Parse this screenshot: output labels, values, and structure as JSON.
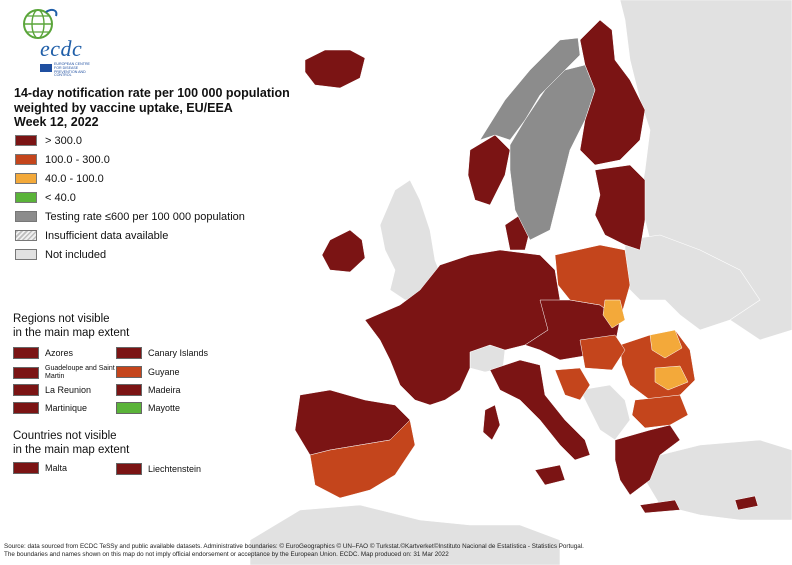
{
  "logo": {
    "text": "ecdc",
    "subtitle": "EUROPEAN CENTRE FOR DISEASE PREVENTION AND CONTROL"
  },
  "title": {
    "line1": "14-day notification rate per 100 000 population",
    "line2": "weighted by vaccine uptake, EU/EEA",
    "line3": "Week 12, 2022"
  },
  "legend": [
    {
      "label": "> 300.0",
      "color": "#7b1414"
    },
    {
      "label": "100.0 - 300.0",
      "color": "#c4451c"
    },
    {
      "label": "40.0 - 100.0",
      "color": "#f3a93a"
    },
    {
      "label": "< 40.0",
      "color": "#5ab339"
    },
    {
      "label": "Testing rate ≤600 per 100 000 population",
      "color": "#8c8c8c"
    },
    {
      "label": "Insufficient data available",
      "color": "hatch"
    },
    {
      "label": "Not included",
      "color": "#e1e1e1"
    }
  ],
  "regions_title": {
    "line1": "Regions not visible",
    "line2": "in the main map extent"
  },
  "regions": [
    {
      "label": "Azores",
      "color": "#7b1414"
    },
    {
      "label": "Guadeloupe and Saint Martin",
      "color": "#7b1414"
    },
    {
      "label": "La Reunion",
      "color": "#7b1414"
    },
    {
      "label": "Martinique",
      "color": "#7b1414"
    },
    {
      "label": "Canary Islands",
      "color": "#7b1414"
    },
    {
      "label": "Guyane",
      "color": "#c4451c"
    },
    {
      "label": "Madeira",
      "color": "#7b1414"
    },
    {
      "label": "Mayotte",
      "color": "#5ab339"
    }
  ],
  "countries_title": {
    "line1": "Countries not visible",
    "line2": "in the main map extent"
  },
  "countries": [
    {
      "label": "Malta",
      "color": "#7b1414"
    },
    {
      "label": "Liechtenstein",
      "color": "#7b1414"
    }
  ],
  "colors": {
    "dark_red": "#7b1414",
    "orange_red": "#c4451c",
    "orange": "#f3a93a",
    "green": "#5ab339",
    "grey_testing": "#8c8c8c",
    "not_included": "#e1e1e1",
    "sea": "#ffffff"
  },
  "source": {
    "line1": "Source: data sourced from ECDC TeSSy and public available datasets. Administrative boundaries: © EuroGeographics © UN–FAO © Turkstat.©Kartverket©Instituto Nacional de Estatística - Statistics Portugal.",
    "line2": "The boundaries and names shown on this map do not imply official endorsement or acceptance by the European Union. ECDC. Map produced on: 31 Mar 2022"
  }
}
